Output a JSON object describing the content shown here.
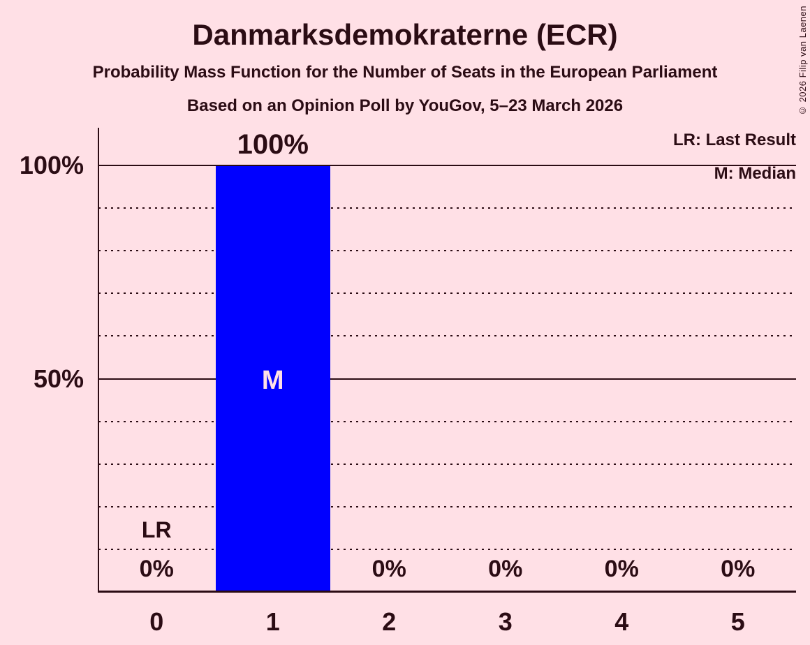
{
  "page": {
    "background_color": "#ffe0e6",
    "text_color": "#2b0c14"
  },
  "copyright": "© 2026 Filip van Laenen",
  "header": {
    "title": "Danmarksdemokraterne (ECR)",
    "subtitle": "Probability Mass Function for the Number of Seats in the European Parliament",
    "poll_line": "Based on an Opinion Poll by YouGov, 5–23 March 2026"
  },
  "legend": {
    "last_result": "LR: Last Result",
    "median": "M: Median"
  },
  "chart_data": {
    "type": "bar",
    "title": "Danmarksdemokraterne (ECR)",
    "subtitle": "Probability Mass Function for the Number of Seats in the European Parliament",
    "poll_line": "Based on an Opinion Poll by YouGov, 5–23 March 2026",
    "categories": [
      "0",
      "1",
      "2",
      "3",
      "4",
      "5"
    ],
    "values": [
      0,
      100,
      0,
      0,
      0,
      0
    ],
    "value_labels": [
      "0%",
      "100%",
      "0%",
      "0%",
      "0%",
      "0%"
    ],
    "ylim": [
      0,
      100
    ],
    "y_major_ticks": [
      {
        "value": 100,
        "label": "100%"
      },
      {
        "value": 50,
        "label": "50%"
      }
    ],
    "y_minor_gridlines": [
      90,
      80,
      70,
      60,
      40,
      30,
      20,
      10
    ],
    "grid": "horizontal-dotted-minor-solid-major",
    "legend_position": "top-right",
    "legend_entries": [
      "LR: Last Result",
      "M: Median"
    ],
    "bar_color": "#0000ff",
    "median": {
      "category": "1",
      "label": "M"
    },
    "last_result": {
      "category": "0",
      "label": "LR"
    }
  }
}
